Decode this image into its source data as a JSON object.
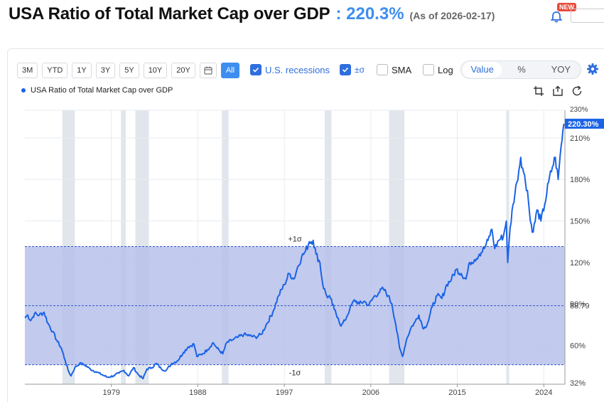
{
  "header": {
    "title": "USA Ratio of Total Market Cap over GDP",
    "value": ": 220.3%",
    "as_of": "(As of 2026-02-17)",
    "badge": "NEW"
  },
  "toolbar": {
    "ranges": [
      "3M",
      "YTD",
      "1Y",
      "3Y",
      "5Y",
      "10Y",
      "20Y"
    ],
    "all_label": "All",
    "recessions_label": "U.S. recessions",
    "sigma_label": "±σ",
    "sma_label": "SMA",
    "log_label": "Log",
    "modes": [
      "Value",
      "%",
      "YOY"
    ],
    "active_mode": "Value"
  },
  "legend": {
    "series_name": "USA Ratio of Total Market Cap over GDP"
  },
  "colors": {
    "line": "#1a63e6",
    "band": "#b7c1eb",
    "recession": "#e1e6ec",
    "accent": "#3d8ef0",
    "badge": "#e84a3a"
  },
  "icons": {
    "bell": "bell-icon",
    "calendar": "calendar-icon",
    "gear": "gear-icon",
    "zoom_in": "zoom-in-icon",
    "zoom_out": "zoom-out-icon",
    "reset": "reset-icon"
  },
  "chart_data": {
    "type": "line",
    "title": "USA Ratio of Total Market Cap over GDP",
    "xlabel": "",
    "ylabel": "",
    "xlim": [
      1970.0,
      2026.2
    ],
    "ylim": [
      32,
      230
    ],
    "y_ticks": [
      60,
      90,
      120,
      150,
      180,
      210
    ],
    "y_tick_labels": [
      "60%",
      "90%",
      "120%",
      "150%",
      "180%",
      "210%"
    ],
    "y_bottom_label": "32%",
    "y_top_label": "230%",
    "x_ticks": [
      1979,
      1988,
      1997,
      2006,
      2015,
      2024
    ],
    "x_tick_labels": [
      "1979",
      "1988",
      "1997",
      "2006",
      "2015",
      "2024"
    ],
    "last_value_label": "220.30%",
    "mean_label": "88.79",
    "mean": 88.79,
    "plus_sigma": 131.5,
    "minus_sigma": 46.1,
    "plus_sigma_label": "+1σ",
    "minus_sigma_label": "-1σ",
    "recessions": [
      [
        1973.9,
        1975.2
      ],
      [
        1980.0,
        1980.5
      ],
      [
        1981.5,
        1982.9
      ],
      [
        1990.5,
        1991.2
      ],
      [
        2001.2,
        2001.9
      ],
      [
        2007.9,
        2009.5
      ],
      [
        2020.1,
        2020.4
      ]
    ],
    "grid": true,
    "legend_position": "top-left",
    "series": [
      {
        "name": "USA Ratio of Total Market Cap over GDP",
        "x": [
          1970.0,
          1970.3,
          1970.6,
          1971.0,
          1971.5,
          1972.0,
          1972.4,
          1972.9,
          1973.3,
          1973.8,
          1974.2,
          1974.5,
          1974.8,
          1975.2,
          1975.7,
          1976.2,
          1976.8,
          1977.4,
          1978.0,
          1978.6,
          1979.2,
          1979.8,
          1980.3,
          1980.8,
          1981.3,
          1981.8,
          1982.3,
          1982.7,
          1983.2,
          1983.7,
          1984.2,
          1984.7,
          1985.3,
          1985.9,
          1986.5,
          1987.0,
          1987.6,
          1987.9,
          1988.5,
          1989.0,
          1989.6,
          1990.0,
          1990.6,
          1991.0,
          1991.6,
          1992.2,
          1992.8,
          1993.4,
          1994.0,
          1994.6,
          1995.2,
          1995.8,
          1996.4,
          1997.0,
          1997.5,
          1998.0,
          1998.4,
          1998.8,
          1999.2,
          1999.6,
          2000.0,
          2000.3,
          2000.7,
          2001.0,
          2001.4,
          2001.8,
          2002.2,
          2002.6,
          2002.9,
          2003.3,
          2003.8,
          2004.3,
          2004.8,
          2005.3,
          2005.8,
          2006.3,
          2006.8,
          2007.3,
          2007.8,
          2008.2,
          2008.6,
          2009.0,
          2009.3,
          2009.7,
          2010.2,
          2010.6,
          2011.0,
          2011.5,
          2011.9,
          2012.4,
          2012.9,
          2013.4,
          2013.9,
          2014.4,
          2014.9,
          2015.4,
          2015.9,
          2016.3,
          2016.8,
          2017.3,
          2017.8,
          2018.2,
          2018.6,
          2018.9,
          2019.3,
          2019.8,
          2020.1,
          2020.25,
          2020.5,
          2020.8,
          2021.2,
          2021.6,
          2021.9,
          2022.3,
          2022.6,
          2022.9,
          2023.3,
          2023.7,
          2024.1,
          2024.5,
          2024.9,
          2025.2,
          2025.5,
          2025.8,
          2026.1
        ],
        "y": [
          80,
          82,
          78,
          83,
          82,
          84,
          76,
          70,
          64,
          58,
          49,
          42,
          38,
          44,
          47,
          46,
          43,
          41,
          39,
          37,
          38,
          40,
          42,
          38,
          44,
          39,
          36,
          43,
          44,
          47,
          43,
          42,
          47,
          49,
          55,
          59,
          61,
          52,
          54,
          57,
          62,
          58,
          54,
          62,
          64,
          66,
          68,
          67,
          66,
          68,
          76,
          84,
          96,
          104,
          112,
          108,
          117,
          124,
          128,
          135,
          136,
          126,
          120,
          104,
          96,
          94,
          86,
          80,
          74,
          78,
          86,
          93,
          90,
          92,
          89,
          95,
          98,
          101,
          96,
          90,
          75,
          58,
          52,
          64,
          73,
          77,
          82,
          72,
          76,
          88,
          96,
          94,
          104,
          108,
          115,
          112,
          108,
          120,
          122,
          126,
          130,
          136,
          144,
          130,
          136,
          139,
          150,
          120,
          145,
          162,
          178,
          196,
          185,
          172,
          150,
          142,
          158,
          150,
          162,
          178,
          189,
          196,
          180,
          204,
          220.3
        ]
      }
    ]
  }
}
